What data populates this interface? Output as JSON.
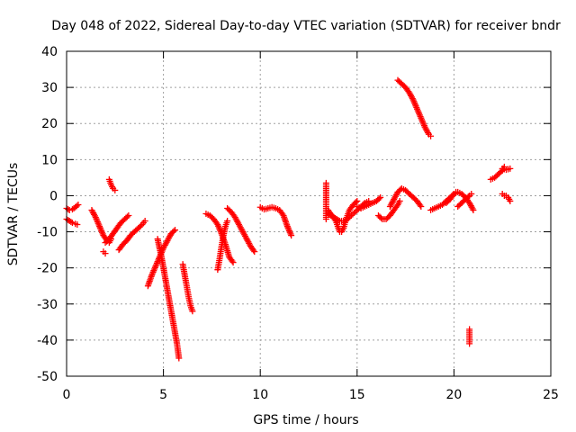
{
  "chart_data": {
    "type": "scatter",
    "title": "Day 048 of 2022, Sidereal Day-to-day VTEC variation (SDTVAR) for receiver bndr",
    "xlabel": "GPS time / hours",
    "ylabel": "SDTVAR / TECUs",
    "xlim": [
      0,
      25
    ],
    "ylim": [
      -50,
      40
    ],
    "xticks": [
      0,
      5,
      10,
      15,
      20,
      25
    ],
    "yticks": [
      -50,
      -40,
      -30,
      -20,
      -10,
      0,
      10,
      20,
      30,
      40
    ],
    "grid": true,
    "legend": "none",
    "marker": "+",
    "color": "#ff0000",
    "segments": [
      {
        "x": [
          0.0,
          0.15,
          0.3,
          0.45,
          0.6
        ],
        "y": [
          -3.5,
          -4.0,
          -3.8,
          -3.2,
          -2.5
        ]
      },
      {
        "x": [
          0.0,
          0.15,
          0.3,
          0.45,
          0.55
        ],
        "y": [
          -6.5,
          -7.0,
          -7.5,
          -7.8,
          -8.0
        ]
      },
      {
        "x": [
          1.3,
          1.5,
          1.7,
          1.9,
          2.1,
          2.2,
          2.3
        ],
        "y": [
          -4.0,
          -6.0,
          -8.5,
          -11.0,
          -12.5,
          -13.0,
          -12.0
        ]
      },
      {
        "x": [
          1.9,
          2.0
        ],
        "y": [
          -15.5,
          -16.0
        ]
      },
      {
        "x": [
          2.2,
          2.3,
          2.4,
          2.5
        ],
        "y": [
          4.5,
          3.0,
          2.0,
          1.5
        ]
      },
      {
        "x": [
          2.0,
          2.2,
          2.4,
          2.6,
          2.8,
          3.0,
          3.2
        ],
        "y": [
          -13.0,
          -12.0,
          -10.5,
          -9.0,
          -7.5,
          -6.5,
          -5.5
        ]
      },
      {
        "x": [
          2.7,
          2.9,
          3.1,
          3.3,
          3.5,
          3.7,
          3.9,
          4.05
        ],
        "y": [
          -15.0,
          -13.5,
          -12.5,
          -11.0,
          -10.0,
          -9.0,
          -8.0,
          -7.0
        ]
      },
      {
        "x": [
          4.2,
          4.4,
          4.6,
          4.8,
          5.0,
          5.2,
          5.4,
          5.6
        ],
        "y": [
          -25.0,
          -22.0,
          -19.5,
          -17.0,
          -14.5,
          -12.5,
          -10.5,
          -9.5
        ]
      },
      {
        "x": [
          4.7,
          4.9,
          5.1,
          5.3,
          5.5,
          5.7,
          5.8
        ],
        "y": [
          -12.0,
          -17.0,
          -23.0,
          -29.0,
          -35.0,
          -41.0,
          -45.0
        ]
      },
      {
        "x": [
          6.0,
          6.1,
          6.2,
          6.3,
          6.4,
          6.5
        ],
        "y": [
          -19.0,
          -22.0,
          -25.0,
          -28.0,
          -30.5,
          -32.0
        ]
      },
      {
        "x": [
          7.2,
          7.4,
          7.6,
          7.8,
          8.0,
          8.2,
          8.4,
          8.6
        ],
        "y": [
          -5.0,
          -5.5,
          -6.5,
          -8.0,
          -10.5,
          -13.5,
          -17.0,
          -18.5
        ]
      },
      {
        "x": [
          7.8,
          7.9,
          8.0,
          8.1,
          8.2,
          8.3
        ],
        "y": [
          -20.5,
          -17.5,
          -14.0,
          -11.0,
          -8.5,
          -7.0
        ]
      },
      {
        "x": [
          8.3,
          8.5,
          8.7,
          8.9,
          9.1,
          9.3,
          9.5,
          9.7
        ],
        "y": [
          -3.5,
          -4.5,
          -6.0,
          -8.0,
          -10.0,
          -12.0,
          -14.0,
          -15.5
        ]
      },
      {
        "x": [
          10.0,
          10.2,
          10.4,
          10.6,
          10.8,
          11.0,
          11.2,
          11.4,
          11.6
        ],
        "y": [
          -3.2,
          -3.8,
          -3.5,
          -3.2,
          -3.5,
          -4.0,
          -5.5,
          -8.5,
          -11.0
        ]
      },
      {
        "x": [
          13.4,
          13.4,
          13.4,
          13.4,
          13.4,
          13.4
        ],
        "y": [
          3.5,
          2.0,
          0.0,
          -2.0,
          -4.0,
          -6.5
        ]
      },
      {
        "x": [
          13.5,
          13.7,
          13.9,
          14.0,
          14.1
        ],
        "y": [
          -4.0,
          -5.5,
          -7.0,
          -8.5,
          -10.0
        ]
      },
      {
        "x": [
          13.5,
          13.8,
          14.1,
          14.4,
          14.7,
          15.0,
          15.2,
          15.4,
          15.6
        ],
        "y": [
          -5.0,
          -6.0,
          -7.0,
          -7.0,
          -5.5,
          -4.0,
          -3.0,
          -2.0,
          -1.5
        ]
      },
      {
        "x": [
          14.2,
          14.3,
          14.4,
          14.5,
          14.6,
          14.8,
          15.0
        ],
        "y": [
          -10.0,
          -9.0,
          -7.0,
          -5.5,
          -4.0,
          -2.5,
          -1.5
        ]
      },
      {
        "x": [
          15.0,
          15.2,
          15.4,
          15.6,
          15.8,
          16.0,
          16.2
        ],
        "y": [
          -3.0,
          -3.5,
          -3.0,
          -2.5,
          -2.0,
          -1.5,
          -0.5
        ]
      },
      {
        "x": [
          16.1,
          16.3,
          16.5,
          16.7,
          16.9,
          17.1,
          17.2
        ],
        "y": [
          -5.5,
          -6.5,
          -6.5,
          -5.5,
          -4.0,
          -2.5,
          -1.5
        ]
      },
      {
        "x": [
          16.7,
          16.9,
          17.1,
          17.3,
          17.5,
          17.7,
          17.9,
          18.1,
          18.3
        ],
        "y": [
          -3.0,
          -1.0,
          1.0,
          2.0,
          1.5,
          0.5,
          -0.5,
          -1.5,
          -3.0
        ]
      },
      {
        "x": [
          17.1,
          17.3,
          17.5,
          17.7,
          17.9,
          18.1,
          18.3,
          18.5,
          18.7,
          18.8
        ],
        "y": [
          32.0,
          31.0,
          30.0,
          28.5,
          26.5,
          24.0,
          21.5,
          19.0,
          17.0,
          16.5
        ]
      },
      {
        "x": [
          18.8,
          19.0,
          19.2,
          19.4,
          19.6,
          19.8,
          20.0,
          20.1
        ],
        "y": [
          -4.0,
          -3.5,
          -3.0,
          -2.5,
          -1.5,
          -0.5,
          0.5,
          1.0
        ]
      },
      {
        "x": [
          19.6,
          19.8,
          20.0,
          20.2,
          20.4,
          20.6,
          20.8,
          21.0
        ],
        "y": [
          -2.0,
          -1.0,
          0.5,
          1.0,
          0.5,
          -0.5,
          -2.0,
          -4.0
        ]
      },
      {
        "x": [
          20.2,
          20.4,
          20.6,
          20.8,
          20.9
        ],
        "y": [
          -3.0,
          -2.0,
          -1.0,
          0.0,
          0.5
        ]
      },
      {
        "x": [
          20.8,
          20.8,
          20.8,
          20.8
        ],
        "y": [
          -37.0,
          -38.5,
          -40.0,
          -41.0
        ]
      },
      {
        "x": [
          21.9,
          22.1,
          22.3,
          22.5,
          22.6
        ],
        "y": [
          4.5,
          5.0,
          6.0,
          7.0,
          8.0
        ]
      },
      {
        "x": [
          22.5,
          22.7,
          22.9
        ],
        "y": [
          7.5,
          7.2,
          7.5
        ]
      },
      {
        "x": [
          22.5,
          22.6,
          22.7,
          22.8,
          22.9
        ],
        "y": [
          0.5,
          0.0,
          0.0,
          -0.5,
          -1.5
        ]
      }
    ]
  }
}
